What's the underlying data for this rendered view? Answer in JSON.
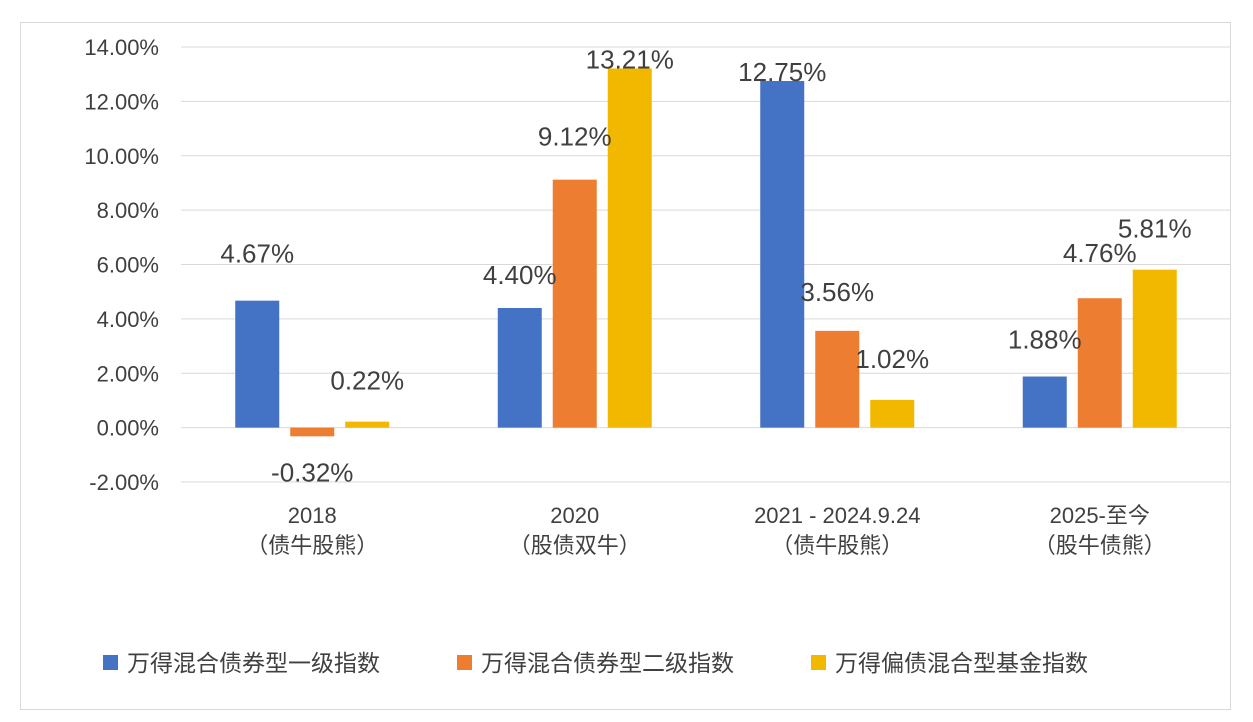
{
  "chart_data": {
    "type": "bar",
    "categories": [
      [
        "2018",
        "（债牛股熊）"
      ],
      [
        "2020",
        "（股债双牛）"
      ],
      [
        "2021 - 2024.9.24",
        "（债牛股熊）"
      ],
      [
        "2025-至今",
        "（股牛债熊）"
      ]
    ],
    "series": [
      {
        "name": "万得混合债券型一级指数",
        "color": "#4472C4",
        "values": [
          4.67,
          4.4,
          12.75,
          1.88
        ]
      },
      {
        "name": "万得混合债券型二级指数",
        "color": "#ED7D31",
        "values": [
          -0.32,
          9.12,
          3.56,
          4.76
        ]
      },
      {
        "name": "万得偏债混合型基金指数",
        "color": "#F2B800",
        "values": [
          0.22,
          13.21,
          1.02,
          5.81
        ]
      }
    ],
    "data_labels": [
      [
        "4.67%",
        "4.40%",
        "12.75%",
        "1.88%"
      ],
      [
        "-0.32%",
        "9.12%",
        "3.56%",
        "4.76%"
      ],
      [
        "0.22%",
        "13.21%",
        "1.02%",
        "5.81%"
      ]
    ],
    "yticks": [
      "14.00%",
      "12.00%",
      "10.00%",
      "8.00%",
      "6.00%",
      "4.00%",
      "2.00%",
      "0.00%",
      "-2.00%"
    ],
    "ylim": [
      -2,
      14
    ],
    "grid": true,
    "legend_position": "bottom"
  }
}
